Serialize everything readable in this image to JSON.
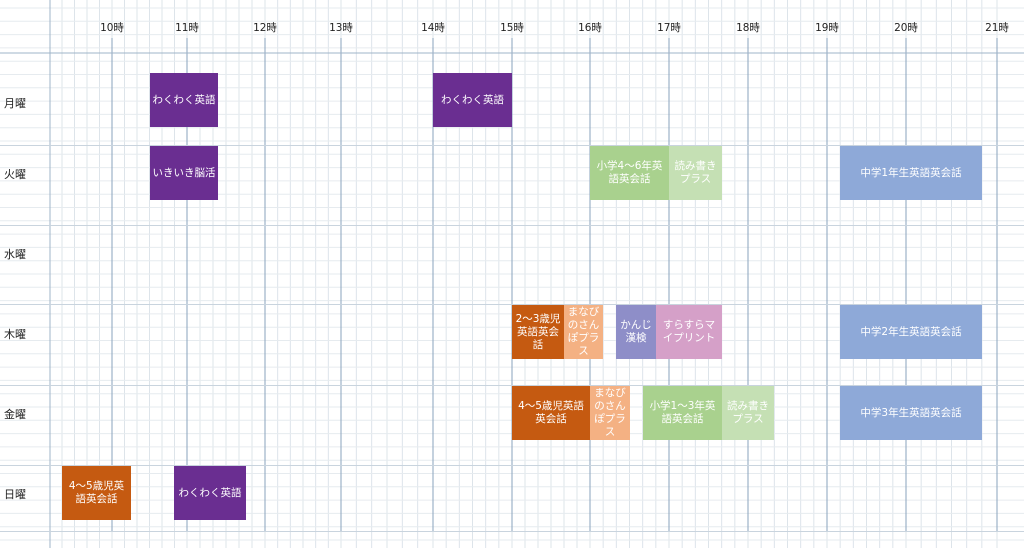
{
  "chart_data": {
    "type": "table",
    "hours": [
      "10時",
      "11時",
      "12時",
      "13時",
      "14時",
      "15時",
      "16時",
      "17時",
      "18時",
      "19時",
      "20時",
      "21時"
    ],
    "days": [
      "月曜",
      "火曜",
      "水曜",
      "木曜",
      "金曜",
      "日曜"
    ],
    "events": [
      {
        "day": "月曜",
        "start": 10.5,
        "end": 11.4,
        "label": "わくわく英語",
        "color": "#6a2e91"
      },
      {
        "day": "月曜",
        "start": 14.0,
        "end": 15.0,
        "label": "わくわく英語",
        "color": "#6a2e91"
      },
      {
        "day": "火曜",
        "start": 10.5,
        "end": 11.4,
        "label": "いきいき脳活",
        "color": "#6a2e91"
      },
      {
        "day": "火曜",
        "start": 16.0,
        "end": 17.0,
        "label": "小学4〜6年英語英会話",
        "color": "#a9d18e"
      },
      {
        "day": "火曜",
        "start": 17.0,
        "end": 17.67,
        "label": "読み書きプラス",
        "color": "#c5e0b4"
      },
      {
        "day": "火曜",
        "start": 19.17,
        "end": 20.83,
        "label": "中学1年生英語英会話",
        "color": "#8ea9d8"
      },
      {
        "day": "木曜",
        "start": 15.0,
        "end": 15.67,
        "label": "2〜3歳児英語英会話",
        "color": "#c55a11"
      },
      {
        "day": "木曜",
        "start": 15.67,
        "end": 16.17,
        "label": "まなびのさんぽプラス",
        "color": "#f4b183"
      },
      {
        "day": "木曜",
        "start": 16.33,
        "end": 16.83,
        "label": "かんじ漢検",
        "color": "#8e8ec8"
      },
      {
        "day": "木曜",
        "start": 16.83,
        "end": 17.67,
        "label": "すらすらマイプリント",
        "color": "#d5a0c8"
      },
      {
        "day": "木曜",
        "start": 19.17,
        "end": 20.83,
        "label": "中学2年生英語英会話",
        "color": "#8ea9d8"
      },
      {
        "day": "金曜",
        "start": 15.0,
        "end": 16.0,
        "label": "4〜5歳児英語英会話",
        "color": "#c55a11"
      },
      {
        "day": "金曜",
        "start": 16.0,
        "end": 16.5,
        "label": "まなびのさんぽプラス",
        "color": "#f4b183"
      },
      {
        "day": "金曜",
        "start": 16.67,
        "end": 17.67,
        "label": "小学1〜3年英語英会話",
        "color": "#a9d18e"
      },
      {
        "day": "金曜",
        "start": 17.67,
        "end": 18.33,
        "label": "読み書きプラス",
        "color": "#c5e0b4"
      },
      {
        "day": "金曜",
        "start": 19.17,
        "end": 20.83,
        "label": "中学3年生英語英会話",
        "color": "#8ea9d8"
      },
      {
        "day": "日曜",
        "start": 9.33,
        "end": 10.25,
        "label": "4〜5歳児英語英会話",
        "color": "#c55a11"
      },
      {
        "day": "日曜",
        "start": 10.83,
        "end": 11.75,
        "label": "わくわく英語",
        "color": "#6a2e91"
      }
    ]
  }
}
